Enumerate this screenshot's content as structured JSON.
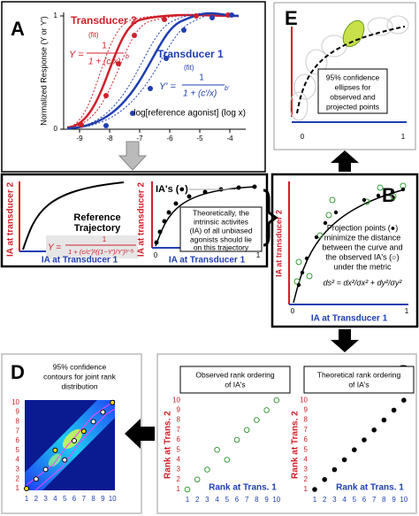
{
  "panel_a": {
    "label": "A",
    "transducer_2": "Transducer 2",
    "transducer_1": "Transducer 1",
    "fit": "(fit)",
    "formula_2_lhs": "Y =",
    "formula_1_lhs": "Y′ =",
    "numerator": "1",
    "denominator_2": "1 + (c/x)",
    "denominator_1": "1 + (c′/x)",
    "exponent_2": "b",
    "exponent_1": "b′",
    "y_axis_label": "Normalized Response (Y or Y′)",
    "x_axis_label": "log[reference agonist] (log x)",
    "xticks": [
      -9,
      -8,
      -7,
      -6,
      -5,
      -4
    ],
    "yticks": [
      0,
      1
    ]
  },
  "trajectory": {
    "reference_trajectory": [
      "Reference",
      "Trajectory"
    ],
    "formula_lhs": "Y =",
    "formula_num": "1",
    "formula_den": "1 + (c/c′)ᵇ((1−Y′)/Y′)ᵇ′ᐟᵇ",
    "y_axis_label": "IA at transducer 2",
    "x_axis_label": "IA at Transducer 1",
    "ias_label": "IA's (●)",
    "note": [
      "Theoretically, the",
      "intrinsic activites",
      "(IA) of all unbiased",
      "agonists should lie",
      "on this trajectory"
    ],
    "ticks": [
      0,
      1
    ]
  },
  "panel_b": {
    "label": "B",
    "note": [
      "Projection points (●)",
      "minimize the distance",
      "between the curve and",
      "the observed IA's (○)",
      "under the metric"
    ],
    "formula": "ds² = dx²/σx² + dy²/σy²",
    "y_axis_label": "IA at transducer 2",
    "x_axis_label": "IA at Transducer 1",
    "ticks": [
      0,
      1
    ]
  },
  "panel_e": {
    "label": "E",
    "note": [
      "95% confidence",
      "ellipses for",
      "observed and",
      "projected points"
    ],
    "ticks": [
      0,
      1
    ]
  },
  "panel_c": {
    "label": "C",
    "observed_title": [
      "Observed rank ordering",
      "of IA's"
    ],
    "theoretical_title": [
      "Theoretical rank ordering",
      "of IA's"
    ],
    "y_axis_label": "Rank at Trans. 2",
    "x_axis_label": "Rank at Trans. 1",
    "ticks": [
      1,
      2,
      3,
      4,
      5,
      6,
      7,
      8,
      9,
      10
    ],
    "observed": {
      "x": [
        1,
        2,
        3,
        4,
        5,
        6,
        7,
        8,
        9,
        10
      ],
      "y": [
        1,
        2,
        3,
        5,
        4,
        6,
        7,
        8,
        9,
        10
      ]
    },
    "theoretical": {
      "x": [
        1,
        2,
        3,
        4,
        5,
        6,
        7,
        8,
        9,
        10
      ],
      "y": [
        1,
        2,
        3,
        4,
        5,
        6,
        7,
        8,
        9,
        10
      ]
    }
  },
  "panel_d": {
    "label": "D",
    "note": [
      "95% confidence",
      "contours for joint rank",
      "distribution"
    ],
    "ticks": [
      1,
      2,
      3,
      4,
      5,
      6,
      7,
      8,
      9,
      10
    ]
  }
}
